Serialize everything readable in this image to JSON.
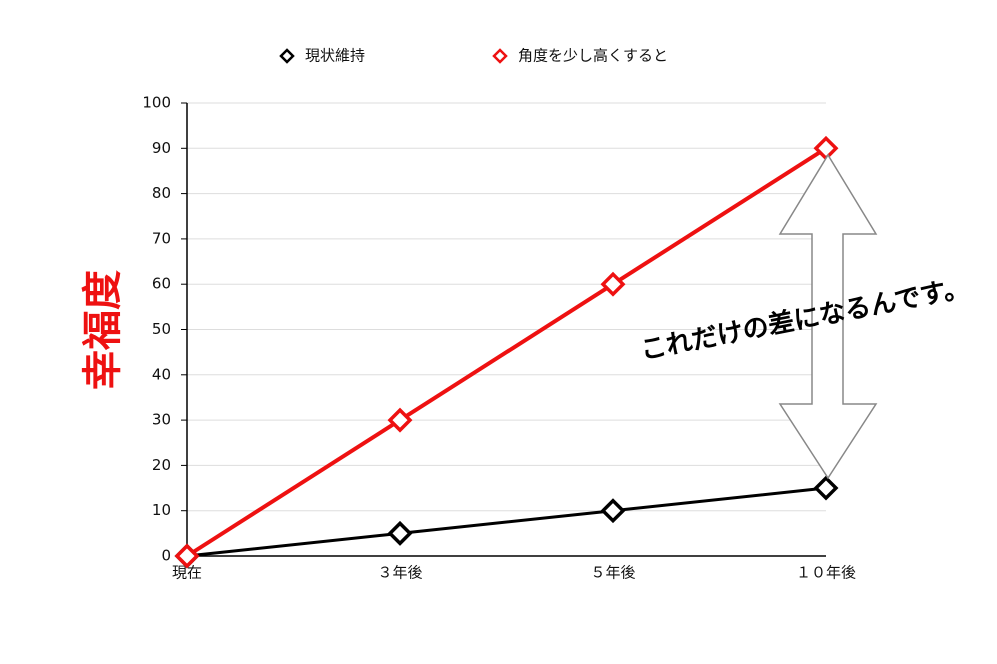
{
  "chart_data": {
    "type": "line",
    "ylabel": "幸福度",
    "annotation": "これだけの差になるんです。",
    "categories": [
      "現在",
      "３年後",
      "５年後",
      "１０年後"
    ],
    "series": [
      {
        "name": "現状維持",
        "color": "#000000",
        "values": [
          0,
          5,
          10,
          15
        ]
      },
      {
        "name": "角度を少し高くすると",
        "color": "#ee1111",
        "values": [
          0,
          30,
          60,
          90
        ]
      }
    ],
    "ylim": [
      0,
      100
    ],
    "yticks": [
      0,
      10,
      20,
      30,
      40,
      50,
      60,
      70,
      80,
      90,
      100
    ],
    "grid": true,
    "legend": "top"
  }
}
